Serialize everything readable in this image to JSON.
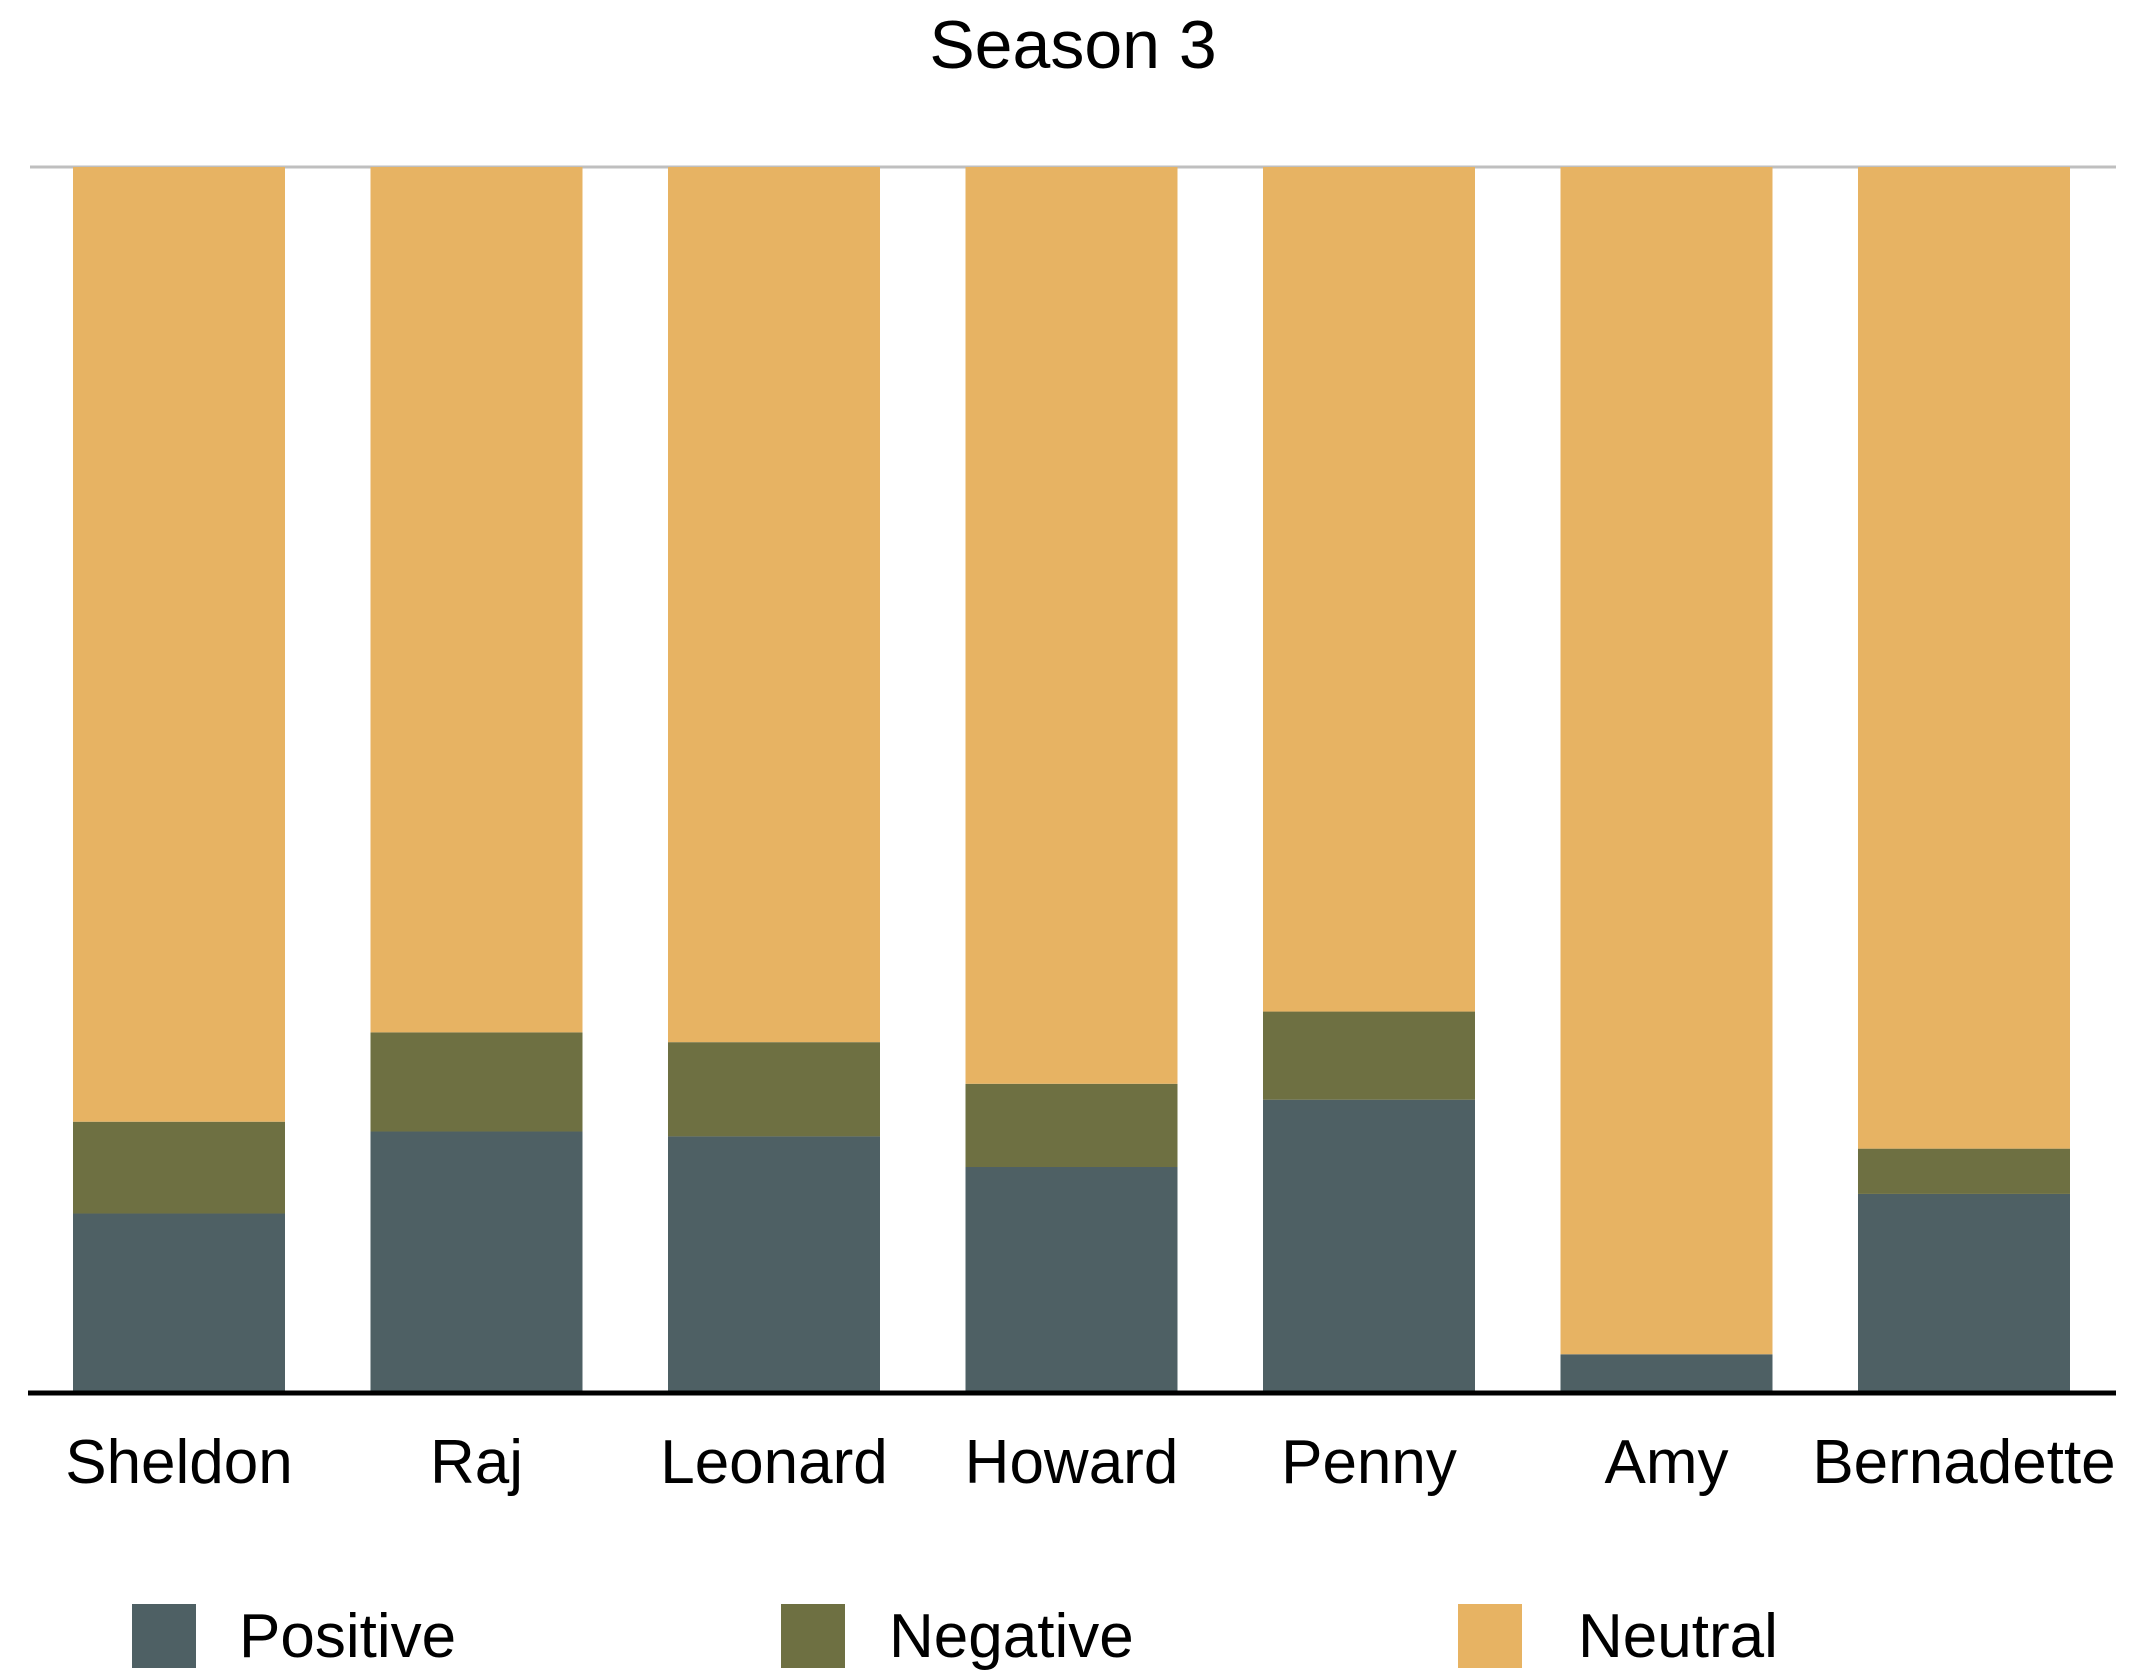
{
  "chart_data": {
    "type": "bar",
    "stacked": true,
    "normalized": true,
    "title": "Season 3",
    "xlabel": "",
    "ylabel": "",
    "ylim": [
      0,
      100
    ],
    "y_axis_labels_shown": false,
    "grid": false,
    "legend_position": "bottom",
    "categories": [
      "Sheldon",
      "Raj",
      "Leonard",
      "Howard",
      "Penny",
      "Amy",
      "Bernadette"
    ],
    "series": [
      {
        "name": "Positive",
        "color": "#4e6064",
        "values": [
          14.5,
          21.2,
          20.8,
          18.3,
          23.8,
          3.0,
          16.1
        ]
      },
      {
        "name": "Negative",
        "color": "#6e7042",
        "values": [
          7.5,
          8.1,
          7.7,
          6.8,
          7.2,
          0.0,
          3.7
        ]
      },
      {
        "name": "Neutral",
        "color": "#e7b363",
        "values": [
          78.0,
          70.7,
          71.5,
          74.9,
          69.0,
          97.0,
          80.2
        ]
      }
    ]
  }
}
